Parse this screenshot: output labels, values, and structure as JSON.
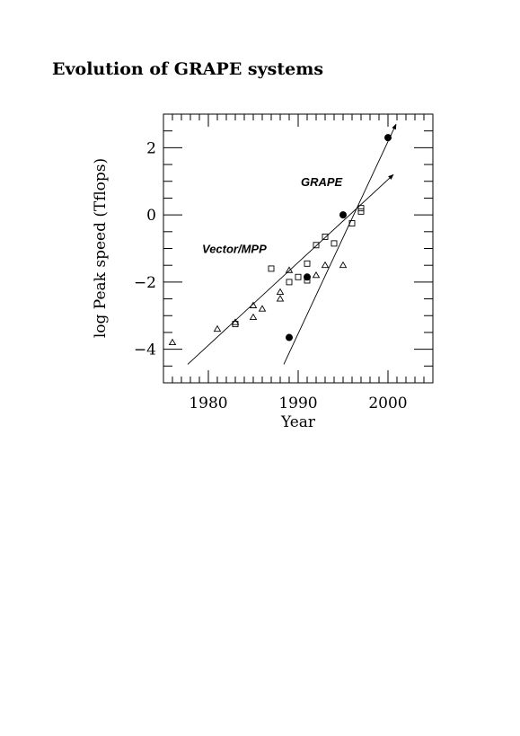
{
  "page": {
    "title": "Evolution of GRAPE systems"
  },
  "chart_data": {
    "type": "scatter",
    "title": "Evolution of GRAPE systems",
    "xlabel": "Year",
    "ylabel": "log Peak speed (Tflops)",
    "xlim": [
      1975,
      2005
    ],
    "ylim": [
      -5,
      3
    ],
    "x_ticks": [
      1980,
      1990,
      2000
    ],
    "y_ticks": [
      2,
      0,
      -2,
      -4
    ],
    "x_tick_labels": [
      "1980",
      "1990",
      "2000"
    ],
    "y_tick_labels": [
      "2",
      "0",
      "−2",
      "−4"
    ],
    "annotations": [
      {
        "text": "GRAPE",
        "x": 1990.3,
        "y": 1.0
      },
      {
        "text": "Vector/MPP",
        "x": 1979.3,
        "y": -1.0
      }
    ],
    "series": [
      {
        "marker": "filled-circle",
        "points": [
          [
            1989,
            -3.65
          ],
          [
            1991,
            -1.85
          ],
          [
            1995,
            0.0
          ],
          [
            2000,
            2.3
          ]
        ]
      },
      {
        "marker": "open-triangle",
        "points": [
          [
            1976,
            -3.8
          ],
          [
            1981,
            -3.4
          ],
          [
            1983,
            -3.2
          ],
          [
            1985,
            -2.7
          ],
          [
            1985,
            -3.05
          ],
          [
            1986,
            -2.8
          ],
          [
            1988,
            -2.3
          ],
          [
            1988,
            -2.5
          ],
          [
            1989,
            -1.65
          ],
          [
            1992,
            -1.8
          ],
          [
            1993,
            -1.5
          ],
          [
            1995,
            -1.5
          ]
        ]
      },
      {
        "marker": "open-square",
        "points": [
          [
            1983,
            -3.25
          ],
          [
            1987,
            -1.6
          ],
          [
            1989,
            -2.0
          ],
          [
            1990,
            -1.85
          ],
          [
            1991,
            -1.45
          ],
          [
            1991,
            -1.95
          ],
          [
            1992,
            -0.9
          ],
          [
            1993,
            -0.65
          ],
          [
            1994,
            -0.85
          ],
          [
            1996,
            -0.25
          ],
          [
            1997,
            0.2
          ],
          [
            1997,
            0.1
          ]
        ]
      }
    ],
    "trend_lines": [
      {
        "name": "GRAPE",
        "from": [
          1988.4,
          -4.45
        ],
        "to": [
          2000.9,
          2.7
        ],
        "arrow": true
      },
      {
        "name": "Vector/MPP",
        "from": [
          1977.7,
          -4.45
        ],
        "to": [
          2000.6,
          1.2
        ],
        "arrow": true
      }
    ]
  }
}
